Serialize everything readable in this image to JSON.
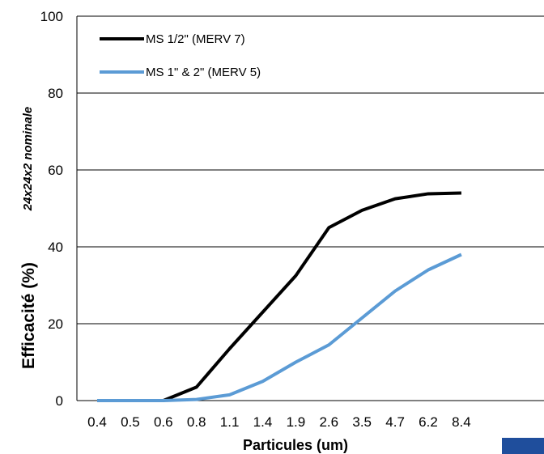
{
  "chart_data": {
    "type": "line",
    "categories": [
      "0.4",
      "0.5",
      "0.6",
      "0.8",
      "1.1",
      "1.4",
      "1.9",
      "2.6",
      "3.5",
      "4.7",
      "6.2",
      "8.4"
    ],
    "series": [
      {
        "name": "MS 1/2\" (MERV 7)",
        "color": "#000000",
        "values": [
          0,
          0,
          0,
          3.5,
          13.5,
          23,
          32.5,
          45,
          49.5,
          52.5,
          53.8,
          54
        ]
      },
      {
        "name": "MS 1\" & 2\" (MERV 5)",
        "color": "#5b9bd5",
        "values": [
          0,
          0,
          0,
          0.3,
          1.5,
          5,
          10,
          14.5,
          21.5,
          28.5,
          34,
          38
        ]
      }
    ],
    "title": "",
    "subtitle": "24x24x2 nominale",
    "xlabel": "Particules (um)",
    "ylabel": "Efficacité (%)",
    "ylim": [
      0,
      100
    ],
    "yticks": [
      0,
      20,
      40,
      60,
      80,
      100
    ],
    "grid": true,
    "legend_position": "top-left"
  },
  "decor": {
    "corner_mark_color": "#1f4e9c"
  }
}
